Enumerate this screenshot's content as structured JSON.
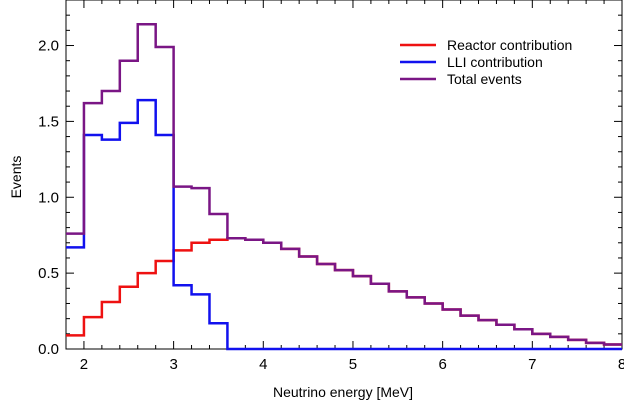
{
  "chart_data": {
    "type": "line",
    "step": true,
    "xlabel": "Neutrino energy [MeV]",
    "ylabel": "Events",
    "xlim": [
      1.8,
      8.0
    ],
    "ylim": [
      0.0,
      2.3
    ],
    "xticks": [
      2,
      3,
      4,
      5,
      6,
      7,
      8
    ],
    "xtick_labels": [
      "2",
      "3",
      "4",
      "5",
      "6",
      "7",
      "8"
    ],
    "yticks": [
      0.0,
      0.5,
      1.0,
      1.5,
      2.0
    ],
    "ytick_labels": [
      "0.0",
      "0.5",
      "1.0",
      "1.5",
      "2.0"
    ],
    "legend_position": "top-right",
    "bin_edges": [
      1.8,
      2.0,
      2.2,
      2.4,
      2.6,
      2.8,
      3.0,
      3.2,
      3.4,
      3.6,
      3.8,
      4.0,
      4.2,
      4.4,
      4.6,
      4.8,
      5.0,
      5.2,
      5.4,
      5.6,
      5.8,
      6.0,
      6.2,
      6.4,
      6.6,
      6.8,
      7.0,
      7.2,
      7.4,
      7.6,
      7.8,
      8.0
    ],
    "series": [
      {
        "name": "Reactor contribution",
        "color": "#ee1111",
        "values": [
          0.09,
          0.21,
          0.31,
          0.41,
          0.5,
          0.58,
          0.65,
          0.7,
          0.72,
          0.73,
          0.72,
          0.7,
          0.66,
          0.61,
          0.56,
          0.52,
          0.48,
          0.43,
          0.38,
          0.34,
          0.3,
          0.26,
          0.22,
          0.19,
          0.16,
          0.13,
          0.1,
          0.08,
          0.06,
          0.04,
          0.03
        ]
      },
      {
        "name": "LLI contribution",
        "color": "#1111ee",
        "values": [
          0.67,
          1.41,
          1.38,
          1.49,
          1.64,
          1.41,
          0.42,
          0.36,
          0.17,
          0.0,
          0.0,
          0.0,
          0.0,
          0.0,
          0.0,
          0.0,
          0.0,
          0.0,
          0.0,
          0.0,
          0.0,
          0.0,
          0.0,
          0.0,
          0.0,
          0.0,
          0.0,
          0.0,
          0.0,
          0.0,
          0.0
        ]
      },
      {
        "name": "Total events",
        "color": "#7a1685",
        "values": [
          0.76,
          1.62,
          1.7,
          1.9,
          2.14,
          1.99,
          1.07,
          1.06,
          0.89,
          0.73,
          0.72,
          0.7,
          0.66,
          0.61,
          0.56,
          0.52,
          0.48,
          0.43,
          0.38,
          0.34,
          0.3,
          0.26,
          0.22,
          0.19,
          0.16,
          0.13,
          0.1,
          0.08,
          0.06,
          0.04,
          0.03
        ]
      }
    ]
  }
}
